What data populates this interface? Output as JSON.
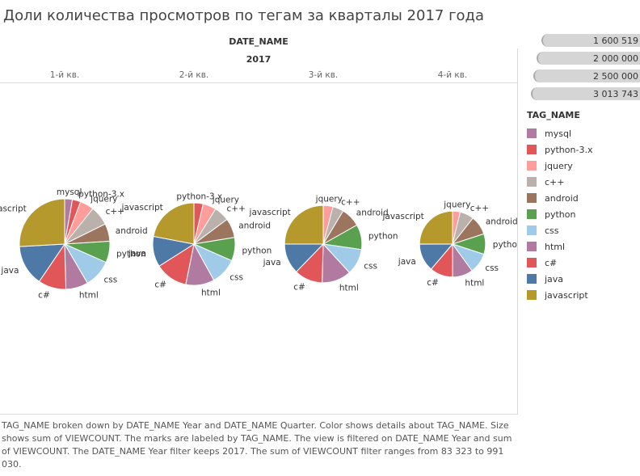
{
  "title": "Доли количества просмотров по тегам за кварталы 2017 года",
  "header": {
    "dimension": "DATE_NAME",
    "year": "2017"
  },
  "quarters": [
    "1-й кв.",
    "2-й кв.",
    "3-й кв.",
    "4-й кв."
  ],
  "footer_text": "TAG_NAME broken down by DATE_NAME Year and DATE_NAME Quarter.  Color shows details about TAG_NAME.  Size shows sum of VIEWCOUNT.  The marks are labeled by TAG_NAME. The view is filtered on DATE_NAME Year and sum of VIEWCOUNT. The DATE_NAME Year filter keeps 2017. The sum of VIEWCOUNT filter ranges from 83 323 to 991 030.",
  "size_legend": {
    "values": [
      "1 600 519",
      "2 000 000",
      "2 500 000",
      "3 013 743"
    ],
    "magnitudes": [
      1600519,
      2000000,
      2500000,
      3013743
    ]
  },
  "color_legend": {
    "title": "TAG_NAME",
    "items": [
      {
        "label": "mysql",
        "color": "#b07aa1"
      },
      {
        "label": "python-3.x",
        "color": "#e15759"
      },
      {
        "label": "jquery",
        "color": "#ff9d9a"
      },
      {
        "label": "c++",
        "color": "#bab0ac"
      },
      {
        "label": "android",
        "color": "#9c755f"
      },
      {
        "label": "python",
        "color": "#59a14f"
      },
      {
        "label": "css",
        "color": "#a0cbe8"
      },
      {
        "label": "html",
        "color": "#b07aa1"
      },
      {
        "label": "c#",
        "color": "#e15759"
      },
      {
        "label": "java",
        "color": "#4e79a7"
      },
      {
        "label": "javascript",
        "color": "#b6992d"
      }
    ]
  },
  "chart_data": {
    "type": "pie",
    "title": "Доли количества просмотров по тегам за кварталы 2017 года",
    "panels": [
      {
        "quarter": "1-й кв.",
        "total": 3013743,
        "slices": [
          {
            "tag": "mysql",
            "value": 83323
          },
          {
            "tag": "python-3.x",
            "value": 90000
          },
          {
            "tag": "jquery",
            "value": 150000
          },
          {
            "tag": "c++",
            "value": 210000
          },
          {
            "tag": "android",
            "value": 190000
          },
          {
            "tag": "python",
            "value": 230000
          },
          {
            "tag": "css",
            "value": 300000
          },
          {
            "tag": "html",
            "value": 240000
          },
          {
            "tag": "c#",
            "value": 300000
          },
          {
            "tag": "java",
            "value": 440000
          },
          {
            "tag": "javascript",
            "value": 780420
          }
        ]
      },
      {
        "quarter": "2-й кв.",
        "total": 2500000,
        "slices": [
          {
            "tag": "python-3.x",
            "value": 90000
          },
          {
            "tag": "jquery",
            "value": 130000
          },
          {
            "tag": "c++",
            "value": 150000
          },
          {
            "tag": "android",
            "value": 190000
          },
          {
            "tag": "python",
            "value": 230000
          },
          {
            "tag": "css",
            "value": 260000
          },
          {
            "tag": "html",
            "value": 280000
          },
          {
            "tag": "c#",
            "value": 320000
          },
          {
            "tag": "java",
            "value": 300000
          },
          {
            "tag": "javascript",
            "value": 550000
          }
        ]
      },
      {
        "quarter": "3-й кв.",
        "total": 2200000,
        "slices": [
          {
            "tag": "jquery",
            "value": 90000
          },
          {
            "tag": "c++",
            "value": 100000
          },
          {
            "tag": "android",
            "value": 180000
          },
          {
            "tag": "python",
            "value": 230000
          },
          {
            "tag": "css",
            "value": 240000
          },
          {
            "tag": "html",
            "value": 270000
          },
          {
            "tag": "c#",
            "value": 260000
          },
          {
            "tag": "java",
            "value": 280000
          },
          {
            "tag": "javascript",
            "value": 550000
          }
        ]
      },
      {
        "quarter": "4-й кв.",
        "total": 1600519,
        "slices": [
          {
            "tag": "jquery",
            "value": 60000
          },
          {
            "tag": "c++",
            "value": 110000
          },
          {
            "tag": "android",
            "value": 150000
          },
          {
            "tag": "python",
            "value": 160000
          },
          {
            "tag": "css",
            "value": 160000
          },
          {
            "tag": "html",
            "value": 160000
          },
          {
            "tag": "c#",
            "value": 180000
          },
          {
            "tag": "java",
            "value": 220000
          },
          {
            "tag": "javascript",
            "value": 400519
          }
        ]
      }
    ]
  }
}
